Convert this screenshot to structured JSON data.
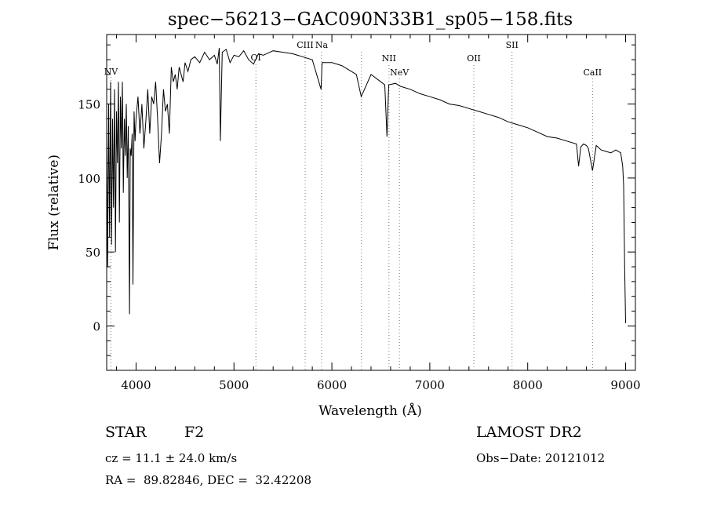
{
  "chart_data": {
    "type": "line",
    "title": "spec−56213−GAC090N33B1_sp05−158.fits",
    "xlabel": "Wavelength (Å)",
    "ylabel": "Flux (relative)",
    "xlim": [
      3700,
      9100
    ],
    "ylim": [
      -30,
      197
    ],
    "xticks": [
      4000,
      5000,
      6000,
      7000,
      8000,
      9000
    ],
    "yticks": [
      0,
      50,
      100,
      150
    ],
    "grid": false,
    "series": [
      {
        "x": [
          3700,
          3710,
          3720,
          3730,
          3740,
          3750,
          3760,
          3770,
          3780,
          3790,
          3800,
          3810,
          3820,
          3830,
          3840,
          3850,
          3860,
          3870,
          3880,
          3890,
          3900,
          3910,
          3920,
          3933,
          3940,
          3950,
          3960,
          3968,
          3980,
          3990,
          4000,
          4020,
          4040,
          4060,
          4080,
          4101,
          4120,
          4140,
          4160,
          4180,
          4200,
          4220,
          4240,
          4260,
          4280,
          4300,
          4320,
          4340,
          4360,
          4380,
          4400,
          4420,
          4440,
          4460,
          4480,
          4500,
          4530,
          4560,
          4600,
          4650,
          4700,
          4750,
          4800,
          4830,
          4850,
          4861,
          4880,
          4920,
          4960,
          5000,
          5050,
          5100,
          5150,
          5200,
          5250,
          5300,
          5400,
          5500,
          5600,
          5700,
          5800,
          5890,
          5900,
          6000,
          6100,
          6200,
          6250,
          6300,
          6400,
          6500,
          6540,
          6563,
          6580,
          6650,
          6700,
          6800,
          6900,
          7000,
          7100,
          7200,
          7300,
          7400,
          7500,
          7600,
          7700,
          7800,
          7900,
          8000,
          8100,
          8200,
          8300,
          8400,
          8498,
          8520,
          8542,
          8570,
          8600,
          8620,
          8662,
          8700,
          8750,
          8800,
          8850,
          8900,
          8950,
          8970,
          8980,
          8990,
          9000
        ],
        "y": [
          130,
          40,
          150,
          60,
          165,
          55,
          140,
          80,
          160,
          50,
          145,
          110,
          165,
          70,
          155,
          120,
          165,
          90,
          140,
          115,
          150,
          100,
          135,
          8,
          120,
          115,
          130,
          28,
          145,
          125,
          140,
          155,
          130,
          150,
          120,
          140,
          160,
          130,
          155,
          150,
          165,
          140,
          110,
          130,
          160,
          145,
          150,
          130,
          175,
          165,
          170,
          160,
          175,
          170,
          165,
          178,
          172,
          180,
          182,
          178,
          185,
          180,
          183,
          177,
          188,
          125,
          185,
          187,
          178,
          183,
          182,
          186,
          180,
          177,
          184,
          183,
          186,
          185,
          184,
          182,
          180,
          160,
          178,
          178,
          176,
          172,
          170,
          155,
          170,
          165,
          163,
          128,
          163,
          164,
          162,
          160,
          157,
          155,
          153,
          150,
          149,
          147,
          145,
          143,
          141,
          138,
          136,
          134,
          131,
          128,
          127,
          125,
          123,
          108,
          121,
          123,
          122,
          120,
          105,
          122,
          119,
          118,
          117,
          119,
          117,
          108,
          95,
          40,
          2
        ]
      }
    ],
    "annotations": {
      "lines": [
        {
          "label": "NV",
          "x": 3743
        },
        {
          "label": "OI",
          "x": 5224
        },
        {
          "label": "CIII",
          "x": 5727
        },
        {
          "label": "Na",
          "x": 5895
        },
        {
          "label": "NII",
          "x": 6583
        },
        {
          "label": "NeV",
          "x": 6690
        },
        {
          "label": "OII",
          "x": 7450
        },
        {
          "label": "SII",
          "x": 7840
        },
        {
          "label": "CaII",
          "x": 8662
        }
      ],
      "extra_dotted_x": [
        6302
      ]
    },
    "info": {
      "class": "STAR",
      "subclass": "F2",
      "cz": "cz = 11.1 ± 24.0 km/s",
      "radec": "RA =  89.82846, DEC =  32.42208",
      "survey": "LAMOST DR2",
      "obsdate": "Obs−Date: 20121012"
    }
  }
}
